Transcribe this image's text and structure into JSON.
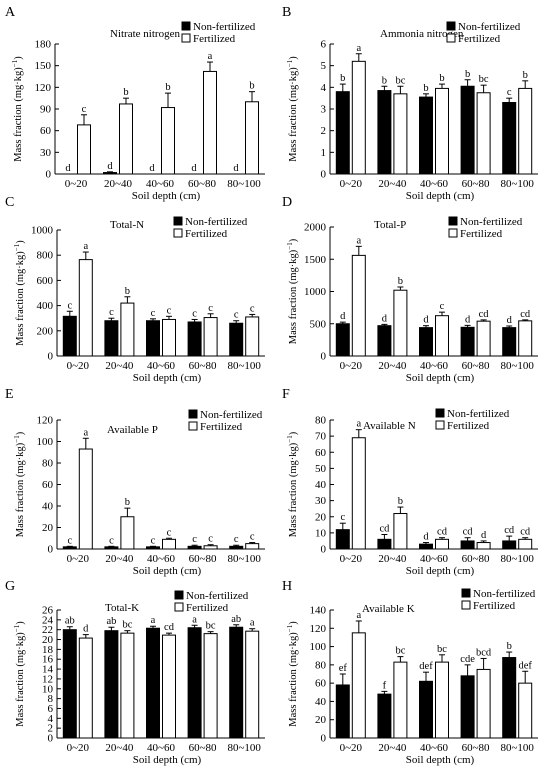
{
  "figure": {
    "xlabel": "Soil depth (cm)",
    "ylabel": "Mass fraction (mg·kg⁻¹)",
    "legend": [
      "Non-fertilized",
      "Fertilized"
    ],
    "categories": [
      "0~20",
      "20~40",
      "40~60",
      "60~80",
      "80~100"
    ]
  },
  "chart_data": [
    {
      "panel": "A",
      "type": "bar",
      "title": "Nitrate nitrogen",
      "categories": [
        "0~20",
        "20~40",
        "40~60",
        "60~80",
        "80~100"
      ],
      "ylim": [
        0,
        180
      ],
      "ticks": [
        0,
        30,
        60,
        90,
        120,
        150,
        180
      ],
      "xlabel": "",
      "ylabel": "Mass fraction (mg·kg⁻¹)",
      "legend_position": "top-right",
      "series": [
        {
          "name": "Non-fertilized",
          "values": [
            0,
            2,
            0,
            0,
            0
          ],
          "errors": [
            0,
            1,
            0,
            0,
            0
          ],
          "letters": [
            "d",
            "d",
            "d",
            "d",
            "d"
          ]
        },
        {
          "name": "Fertilized",
          "values": [
            68,
            97,
            92,
            142,
            100
          ],
          "errors": [
            14,
            8,
            20,
            13,
            14
          ],
          "letters": [
            "c",
            "b",
            "b",
            "a",
            "b"
          ]
        }
      ]
    },
    {
      "panel": "B",
      "type": "bar",
      "title": "Ammonia nitrogen",
      "categories": [
        "0~20",
        "20~40",
        "40~60",
        "60~80",
        "80~100"
      ],
      "ylim": [
        0,
        6
      ],
      "ticks": [
        0,
        1,
        2,
        3,
        4,
        5,
        6
      ],
      "xlabel": "",
      "ylabel": "Mass fraction (mg·kg⁻¹)",
      "legend_position": "top-right",
      "series": [
        {
          "name": "Non-fertilized",
          "values": [
            3.8,
            3.85,
            3.55,
            4.05,
            3.3
          ],
          "errors": [
            0.35,
            0.2,
            0.15,
            0.3,
            0.2
          ],
          "letters": [
            "b",
            "b",
            "b",
            "b",
            "c"
          ]
        },
        {
          "name": "Fertilized",
          "values": [
            5.2,
            3.7,
            3.95,
            3.75,
            3.95
          ],
          "errors": [
            0.35,
            0.35,
            0.2,
            0.35,
            0.35
          ],
          "letters": [
            "a",
            "bc",
            "b",
            "bc",
            "b"
          ]
        }
      ]
    },
    {
      "panel": "C",
      "type": "bar",
      "title": "Total-N",
      "categories": [
        "0~20",
        "20~40",
        "40~60",
        "60~80",
        "80~100"
      ],
      "ylim": [
        0,
        1000
      ],
      "ticks": [
        0,
        200,
        400,
        600,
        800,
        1000
      ],
      "xlabel": "",
      "ylabel": "Mass fraction (mg·kg⁻¹)",
      "legend_position": "top-right",
      "series": [
        {
          "name": "Non-fertilized",
          "values": [
            315,
            280,
            280,
            270,
            260
          ],
          "errors": [
            40,
            20,
            15,
            20,
            20
          ],
          "letters": [
            "c",
            "c",
            "c",
            "c",
            "c"
          ]
        },
        {
          "name": "Fertilized",
          "values": [
            765,
            420,
            290,
            305,
            310
          ],
          "errors": [
            60,
            50,
            25,
            30,
            20
          ],
          "letters": [
            "a",
            "b",
            "c",
            "c",
            "c"
          ]
        }
      ]
    },
    {
      "panel": "D",
      "type": "bar",
      "title": "Total-P",
      "categories": [
        "0~20",
        "20~40",
        "40~60",
        "60~80",
        "80~100"
      ],
      "ylim": [
        0,
        2000
      ],
      "ticks": [
        0,
        500,
        1000,
        1500,
        2000
      ],
      "xlabel": "",
      "ylabel": "Mass fraction (mg·kg⁻¹)",
      "legend_position": "top-right",
      "series": [
        {
          "name": "Non-fertilized",
          "values": [
            500,
            470,
            440,
            445,
            440
          ],
          "errors": [
            25,
            20,
            30,
            30,
            25
          ],
          "letters": [
            "d",
            "d",
            "d",
            "d",
            "d"
          ]
        },
        {
          "name": "Fertilized",
          "values": [
            1560,
            1020,
            625,
            540,
            545
          ],
          "errors": [
            140,
            50,
            55,
            20,
            15
          ],
          "letters": [
            "a",
            "b",
            "c",
            "cd",
            "cd"
          ]
        }
      ]
    },
    {
      "panel": "E",
      "type": "bar",
      "title": "Available P",
      "categories": [
        "0~20",
        "20~40",
        "40~60",
        "60~80",
        "80~100"
      ],
      "ylim": [
        0,
        120
      ],
      "ticks": [
        0,
        20,
        40,
        60,
        80,
        100,
        120
      ],
      "xlabel": "",
      "ylabel": "Mass fraction (mg·kg⁻¹)",
      "legend_position": "top-right",
      "series": [
        {
          "name": "Non-fertilized",
          "values": [
            2,
            2,
            2,
            2.5,
            2.5
          ],
          "errors": [
            0.5,
            0.5,
            0.5,
            1,
            1
          ],
          "letters": [
            "c",
            "c",
            "c",
            "c",
            "c"
          ]
        },
        {
          "name": "Fertilized",
          "values": [
            93,
            30,
            9,
            3,
            5
          ],
          "errors": [
            10,
            8,
            1,
            1,
            1
          ],
          "letters": [
            "a",
            "b",
            "c",
            "c",
            "c"
          ]
        }
      ]
    },
    {
      "panel": "F",
      "type": "bar",
      "title": "Available N",
      "categories": [
        "0~20",
        "20~40",
        "40~60",
        "60~80",
        "80~100"
      ],
      "ylim": [
        0,
        80
      ],
      "ticks": [
        0,
        10,
        20,
        30,
        40,
        50,
        60,
        70,
        80
      ],
      "xlabel": "",
      "ylabel": "Mass fraction (mg·kg⁻¹)",
      "legend_position": "top-right",
      "series": [
        {
          "name": "Non-fertilized",
          "values": [
            12,
            6,
            3,
            5,
            5
          ],
          "errors": [
            4,
            3,
            1,
            2,
            3
          ],
          "letters": [
            "c",
            "cd",
            "d",
            "cd",
            "cd"
          ]
        },
        {
          "name": "Fertilized",
          "values": [
            69,
            22,
            6,
            4,
            6
          ],
          "errors": [
            5,
            4,
            1,
            1,
            1
          ],
          "letters": [
            "a",
            "b",
            "cd",
            "d",
            "cd"
          ]
        }
      ]
    },
    {
      "panel": "G",
      "type": "bar",
      "title": "Total-K",
      "categories": [
        "0~20",
        "20~40",
        "40~60",
        "60~80",
        "80~100"
      ],
      "ylim": [
        0,
        26
      ],
      "ticks": [
        0,
        2,
        4,
        6,
        8,
        10,
        12,
        14,
        16,
        18,
        20,
        22,
        24,
        26
      ],
      "xlabel": "",
      "ylabel": "Mass fraction (mg·kg⁻¹)",
      "legend_position": "top-right",
      "series": [
        {
          "name": "Non-fertilized",
          "values": [
            22,
            21.8,
            22.3,
            22.4,
            22.5
          ],
          "errors": [
            0.6,
            0.7,
            0.4,
            0.5,
            0.5
          ],
          "letters": [
            "ab",
            "ab",
            "a",
            "a",
            "ab"
          ]
        },
        {
          "name": "Fertilized",
          "values": [
            20.3,
            21.3,
            20.9,
            21.2,
            21.7
          ],
          "errors": [
            0.7,
            0.5,
            0.4,
            0.4,
            0.5
          ],
          "letters": [
            "d",
            "bc",
            "cd",
            "bc",
            "a"
          ]
        }
      ]
    },
    {
      "panel": "H",
      "type": "bar",
      "title": "Available K",
      "categories": [
        "0~20",
        "20~40",
        "40~60",
        "60~80",
        "80~100"
      ],
      "ylim": [
        0,
        140
      ],
      "ticks": [
        0,
        20,
        40,
        60,
        80,
        100,
        120,
        140
      ],
      "xlabel": "",
      "ylabel": "Mass fraction (mg·kg⁻¹)",
      "legend_position": "top-right",
      "series": [
        {
          "name": "Non-fertilized",
          "values": [
            58,
            48,
            62,
            68,
            88
          ],
          "errors": [
            12,
            3,
            10,
            12,
            6
          ],
          "letters": [
            "ef",
            "f",
            "def",
            "cde",
            "b"
          ]
        },
        {
          "name": "Fertilized",
          "values": [
            115,
            83,
            83,
            75,
            60
          ],
          "errors": [
            13,
            6,
            8,
            12,
            13
          ],
          "letters": [
            "a",
            "bc",
            "bc",
            "bcd",
            "def"
          ]
        }
      ]
    }
  ]
}
